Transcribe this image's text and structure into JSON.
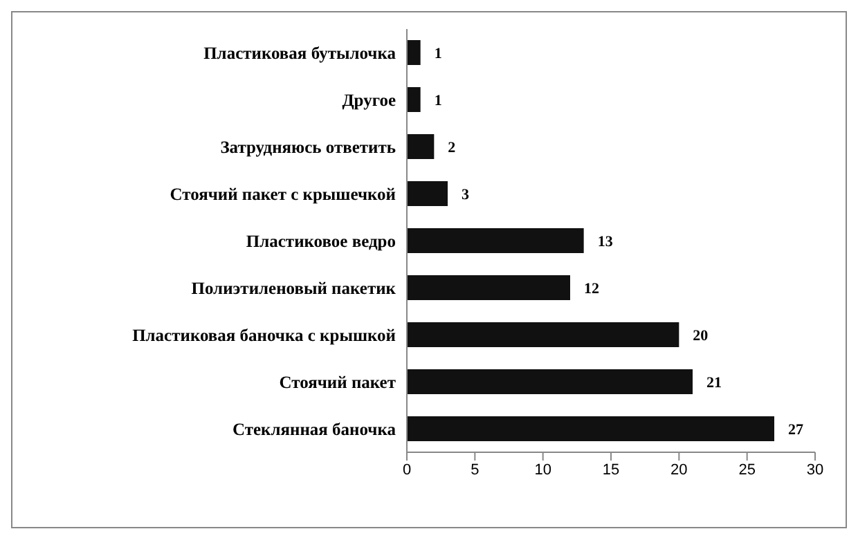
{
  "chart_data": {
    "type": "bar",
    "orientation": "horizontal",
    "categories": [
      "Пластиковая бутылочка",
      "Другое",
      "Затрудняюсь ответить",
      "Стоячий пакет с крышечкой",
      "Пластиковое ведро",
      "Полиэтиленовый пакетик",
      "Пластиковая баночка с крышкой",
      "Стоячий пакет",
      "Стеклянная баночка"
    ],
    "values": [
      1,
      1,
      2,
      3,
      13,
      12,
      20,
      21,
      27
    ],
    "color": "#111111",
    "xlim": [
      0,
      30
    ],
    "xticks": [
      0,
      5,
      10,
      15,
      20,
      25,
      30
    ],
    "data_labels": true
  }
}
